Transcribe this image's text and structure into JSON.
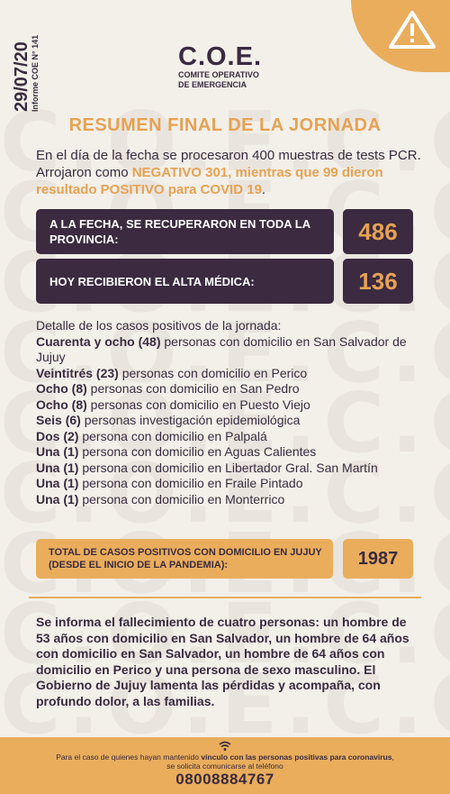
{
  "watermark": "C.O.E.C.O.E.",
  "header": {
    "date": "29/07/20",
    "report": "Informe COE N° 141",
    "logo_big": "C.O.E.",
    "logo_line1": "COMITE OPERATIVO",
    "logo_line2": "DE EMERGENCIA",
    "warning_icon": "warning-triangle-icon"
  },
  "title": "RESUMEN FINAL DE LA JORNADA",
  "intro": {
    "text1": "En el día de la fecha se procesaron 400 muestras de tests PCR. Arrojaron como ",
    "highlight": "NEGATIVO 301, mientras que 99 dieron resultado POSITIVO para COVID 19",
    "text2": "."
  },
  "stats": [
    {
      "label": "A LA FECHA, SE RECUPERARON EN TODA LA PROVINCIA:",
      "value": "486"
    },
    {
      "label": "HOY RECIBIERON EL ALTA MÉDICA:",
      "value": "136"
    }
  ],
  "details": {
    "heading": "Detalle de los casos positivos de la jornada:",
    "items": [
      {
        "bold": "Cuarenta y ocho (48)",
        "text": " personas con domicilio en San Salvador de Jujuy"
      },
      {
        "bold": "Veintitrés (23)",
        "text": " personas con domicilio en Perico"
      },
      {
        "bold": "Ocho (8)",
        "text": " personas con domicilio en San Pedro"
      },
      {
        "bold": "Ocho (8)",
        "text": " personas con domicilio en Puesto Viejo"
      },
      {
        "bold": "Seis (6)",
        "text": " personas investigación epidemiológica"
      },
      {
        "bold": "Dos (2)",
        "text": " persona con domicilio en Palpalá"
      },
      {
        "bold": "Una (1)",
        "text": " persona con domicilio en Aguas Calientes"
      },
      {
        "bold": "Una (1)",
        "text": " persona con domicilio en Libertador Gral. San Martín"
      },
      {
        "bold": "Una (1)",
        "text": " persona con domicilio en Fraile Pintado"
      },
      {
        "bold": "Una (1)",
        "text": " persona con domicilio en Monterrico"
      }
    ]
  },
  "total": {
    "label": "TOTAL DE CASOS POSITIVOS CON DOMICILIO EN JUJUY (DESDE EL INICIO DE LA PANDEMIA):",
    "value": "1987"
  },
  "death_notice": "Se informa el fallecimiento de cuatro personas: un hombre de 53 años con domicilio en San Salvador, un hombre de 64 años con domicilio en San Salvador, un hombre de 64 años con domicilio en Perico y una persona de sexo masculino. El Gobierno de Jujuy lamenta las pérdidas y acompaña, con profundo dolor, a las familias.",
  "footer": {
    "text_a": "Para el caso de quienes hayan mantenido ",
    "text_b": "vínculo con las personas positivas para coronavirus",
    "text_c": ", se solicita comunicarse al teléfono",
    "phone": "08008884767",
    "icon": "wifi-icon"
  }
}
